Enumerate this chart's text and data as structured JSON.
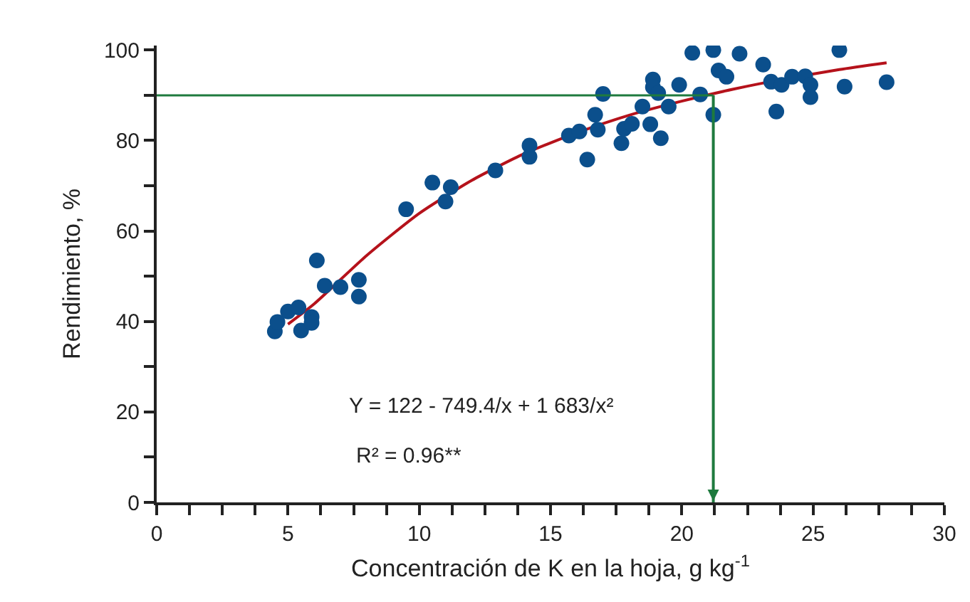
{
  "chart_data": {
    "type": "scatter",
    "xlabel": "Concentración de K en la hoja, g kg$^{-1}$",
    "ylabel": "Rendimiento, %",
    "xlim": [
      0,
      30
    ],
    "ylim": [
      0,
      101
    ],
    "xticks": [
      0,
      {
        "value": 1.25,
        "label": null
      },
      {
        "value": 2.5,
        "label": null
      },
      {
        "value": 3.75,
        "label": null
      },
      5,
      {
        "value": 6.25,
        "label": null
      },
      {
        "value": 7.5,
        "label": null
      },
      {
        "value": 8.75,
        "label": null
      },
      10,
      {
        "value": 11.25,
        "label": null
      },
      {
        "value": 12.5,
        "label": null
      },
      {
        "value": 13.75,
        "label": null
      },
      15,
      {
        "value": 16.25,
        "label": null
      },
      {
        "value": 17.5,
        "label": null
      },
      {
        "value": 18.75,
        "label": null
      },
      20,
      {
        "value": 21.25,
        "label": null
      },
      {
        "value": 22.5,
        "label": null
      },
      {
        "value": 23.75,
        "label": null
      },
      25,
      {
        "value": 26.25,
        "label": null
      },
      {
        "value": 27.5,
        "label": null
      },
      {
        "value": 28.75,
        "label": null
      },
      30
    ],
    "yticks": [
      0,
      {
        "value": 10,
        "label": null
      },
      20,
      {
        "value": 30,
        "label": null
      },
      40,
      {
        "value": 50,
        "label": null
      },
      60,
      {
        "value": 70,
        "label": null
      },
      80,
      {
        "value": 90,
        "label": null
      },
      100
    ],
    "grid": false,
    "marker": "circle",
    "series": [
      {
        "color": "#0b4f8c",
        "x": [
          4.5,
          4.6,
          5.0,
          5.4,
          5.5,
          5.9,
          5.9,
          6.1,
          6.4,
          7.0,
          7.7,
          7.7,
          9.5,
          10.5,
          11.2,
          11.0,
          12.9,
          14.2,
          14.2,
          16.4,
          15.7,
          16.1,
          16.7,
          16.8,
          17.0,
          17.7,
          17.8,
          18.1,
          18.5,
          18.8,
          18.9,
          18.9,
          19.1,
          19.2,
          19.5,
          19.9,
          20.4,
          20.7,
          21.2,
          21.2,
          21.4,
          21.7,
          22.2,
          23.1,
          23.4,
          23.8,
          23.6,
          24.2,
          24.7,
          24.9,
          24.9,
          26.0,
          26.2,
          27.8
        ],
        "values": [
          37.8,
          39.9,
          42.2,
          43.1,
          38.0,
          41.0,
          39.7,
          53.5,
          47.9,
          47.6,
          49.2,
          45.5,
          64.8,
          70.7,
          69.7,
          66.5,
          73.4,
          78.9,
          76.4,
          75.8,
          81.1,
          82.0,
          85.7,
          82.4,
          90.3,
          79.4,
          82.6,
          83.7,
          87.5,
          83.6,
          93.5,
          91.8,
          90.5,
          80.5,
          87.5,
          92.3,
          99.4,
          90.2,
          100,
          85.7,
          95.5,
          94.1,
          99.2,
          96.8,
          93.0,
          92.3,
          86.4,
          94.1,
          94.2,
          92.3,
          89.6,
          100,
          91.9,
          92.9
        ]
      },
      {
        "type": "line",
        "color": "#b5121b",
        "marker": "none",
        "line_style": "solid",
        "x": [
          5,
          6,
          8,
          10,
          12,
          14,
          16,
          18,
          20,
          22,
          24,
          26,
          27.8
        ],
        "values": [
          39.4,
          43.9,
          54.6,
          63.9,
          71.2,
          77.1,
          81.7,
          85.6,
          88.7,
          91.4,
          93.7,
          95.7,
          97.2
        ]
      }
    ],
    "ref_lines": [
      {
        "axis": "y",
        "value": 90,
        "color": "#1e7a3e"
      },
      {
        "axis": "x",
        "value": 21.2,
        "color": "#1e7a3e"
      }
    ],
    "annotations": [
      "Y = 122 - 749.4/x + 1 683/x²",
      "R² = 0.96**"
    ]
  }
}
